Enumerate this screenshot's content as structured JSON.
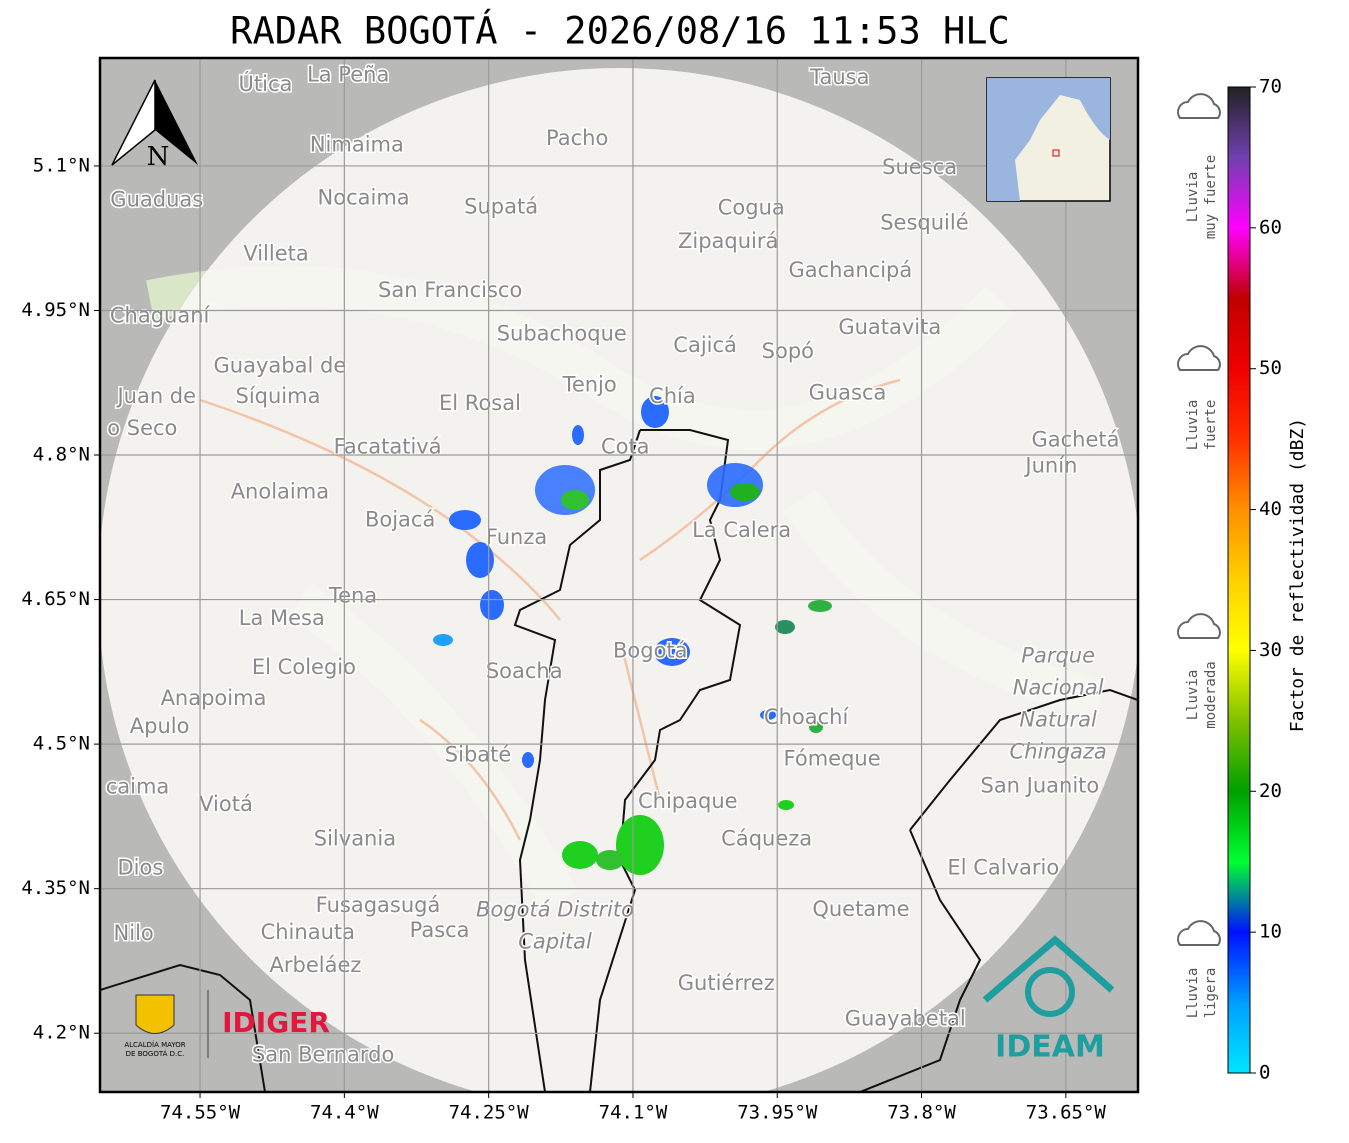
{
  "title": "RADAR BOGOTÁ - 2026/08/16 11:53 HLC",
  "map": {
    "xlim": [
      -74.654,
      -73.575
    ],
    "ylim": [
      4.139,
      5.212
    ],
    "xticks": [
      {
        "value": -74.55,
        "label": "74.55°W"
      },
      {
        "value": -74.4,
        "label": "74.4°W"
      },
      {
        "value": -74.25,
        "label": "74.25°W"
      },
      {
        "value": -74.1,
        "label": "74.1°W"
      },
      {
        "value": -73.95,
        "label": "73.95°W"
      },
      {
        "value": -73.8,
        "label": "73.8°W"
      },
      {
        "value": -73.65,
        "label": "73.65°W"
      }
    ],
    "yticks": [
      {
        "value": 5.1,
        "label": "5.1°N"
      },
      {
        "value": 4.95,
        "label": "4.95°N"
      },
      {
        "value": 4.8,
        "label": "4.8°N"
      },
      {
        "value": 4.65,
        "label": "4.65°N"
      },
      {
        "value": 4.5,
        "label": "4.5°N"
      },
      {
        "value": 4.35,
        "label": "4.35°N"
      },
      {
        "value": 4.2,
        "label": "4.2°N"
      }
    ],
    "grid": true,
    "north": "N",
    "places": [
      {
        "name": "Útica",
        "lon": -74.482,
        "lat": 5.184
      },
      {
        "name": "La Peña",
        "lon": -74.396,
        "lat": 5.194
      },
      {
        "name": "Tausa",
        "lon": -73.885,
        "lat": 5.191
      },
      {
        "name": "Pacho",
        "lon": -74.158,
        "lat": 5.128
      },
      {
        "name": "Nimaima",
        "lon": -74.387,
        "lat": 5.121
      },
      {
        "name": "Guaduas",
        "lon": -74.595,
        "lat": 5.064
      },
      {
        "name": "Nocaima",
        "lon": -74.38,
        "lat": 5.066
      },
      {
        "name": "Supatá",
        "lon": -74.237,
        "lat": 5.057
      },
      {
        "name": "Cogua",
        "lon": -73.977,
        "lat": 5.056
      },
      {
        "name": "Suesca",
        "lon": -73.802,
        "lat": 5.098
      },
      {
        "name": "Sesquilé",
        "lon": -73.797,
        "lat": 5.04
      },
      {
        "name": "Zipaquirá",
        "lon": -74.001,
        "lat": 5.021
      },
      {
        "name": "Villeta",
        "lon": -74.471,
        "lat": 5.008
      },
      {
        "name": "Gachancipá",
        "lon": -73.874,
        "lat": 4.991
      },
      {
        "name": "San Francisco",
        "lon": -74.29,
        "lat": 4.97
      },
      {
        "name": "Chaguaní",
        "lon": -74.592,
        "lat": 4.944
      },
      {
        "name": "Guatavita",
        "lon": -73.833,
        "lat": 4.932
      },
      {
        "name": "Subachoque",
        "lon": -74.174,
        "lat": 4.925
      },
      {
        "name": "Cajicá",
        "lon": -74.025,
        "lat": 4.913
      },
      {
        "name": "Sopó",
        "lon": -73.939,
        "lat": 4.907
      },
      {
        "name": "Guayabal de",
        "lon": -74.467,
        "lat": 4.892
      },
      {
        "name": "Síquima",
        "lon": -74.469,
        "lat": 4.86
      },
      {
        "name": "Tenjo",
        "lon": -74.145,
        "lat": 4.872
      },
      {
        "name": "Chía",
        "lon": -74.059,
        "lat": 4.86
      },
      {
        "name": "Guasca",
        "lon": -73.877,
        "lat": 4.864
      },
      {
        "name": "Juan de",
        "lon": -74.595,
        "lat": 4.86
      },
      {
        "name": "o Seco",
        "lon": -74.61,
        "lat": 4.827
      },
      {
        "name": "El Rosal",
        "lon": -74.259,
        "lat": 4.853
      },
      {
        "name": "Facatativá",
        "lon": -74.355,
        "lat": 4.808
      },
      {
        "name": "Cota",
        "lon": -74.108,
        "lat": 4.808
      },
      {
        "name": "Gachetá",
        "lon": -73.64,
        "lat": 4.815
      },
      {
        "name": "Junín",
        "lon": -73.665,
        "lat": 4.788
      },
      {
        "name": "Anolaima",
        "lon": -74.467,
        "lat": 4.761
      },
      {
        "name": "Bojacá",
        "lon": -74.342,
        "lat": 4.732
      },
      {
        "name": "Funza",
        "lon": -74.221,
        "lat": 4.714
      },
      {
        "name": "La Calera",
        "lon": -73.987,
        "lat": 4.721
      },
      {
        "name": "Tena",
        "lon": -74.391,
        "lat": 4.653
      },
      {
        "name": "La Mesa",
        "lon": -74.465,
        "lat": 4.63
      },
      {
        "name": "Soacha",
        "lon": -74.213,
        "lat": 4.575
      },
      {
        "name": "Bogotá",
        "lon": -74.082,
        "lat": 4.596
      },
      {
        "name": "El Colegio",
        "lon": -74.442,
        "lat": 4.579
      },
      {
        "name": "Anapoima",
        "lon": -74.536,
        "lat": 4.547
      },
      {
        "name": "Apulo",
        "lon": -74.592,
        "lat": 4.518
      },
      {
        "name": "Choachí",
        "lon": -73.92,
        "lat": 4.527
      },
      {
        "name": "Sibaté",
        "lon": -74.261,
        "lat": 4.488
      },
      {
        "name": "Fómeque",
        "lon": -73.893,
        "lat": 4.484
      },
      {
        "name": "San Juanito",
        "lon": -73.677,
        "lat": 4.456
      },
      {
        "name": "caima",
        "lon": -74.615,
        "lat": 4.455
      },
      {
        "name": "Viotá",
        "lon": -74.523,
        "lat": 4.437
      },
      {
        "name": "Chipaque",
        "lon": -74.043,
        "lat": 4.44
      },
      {
        "name": "Silvania",
        "lon": -74.389,
        "lat": 4.401
      },
      {
        "name": "Cáqueza",
        "lon": -73.961,
        "lat": 4.401
      },
      {
        "name": "Dios",
        "lon": -74.612,
        "lat": 4.371
      },
      {
        "name": "El Calvario",
        "lon": -73.715,
        "lat": 4.371
      },
      {
        "name": "Fusagasugá",
        "lon": -74.365,
        "lat": 4.332
      },
      {
        "name": "Quetame",
        "lon": -73.863,
        "lat": 4.328
      },
      {
        "name": "Nilo",
        "lon": -74.619,
        "lat": 4.303
      },
      {
        "name": "Chinauta",
        "lon": -74.438,
        "lat": 4.304
      },
      {
        "name": "Pasca",
        "lon": -74.301,
        "lat": 4.306
      },
      {
        "name": "Arbeláez",
        "lon": -74.43,
        "lat": 4.27
      },
      {
        "name": "Gutiérrez",
        "lon": -74.003,
        "lat": 4.251
      },
      {
        "name": "Guayabetal",
        "lon": -73.817,
        "lat": 4.214
      },
      {
        "name": "San Bernardo",
        "lon": -74.422,
        "lat": 4.177
      }
    ],
    "areas": [
      {
        "lines": [
          "Parque",
          "Nacional",
          "Natural",
          "Chingaza"
        ],
        "lon": -73.658,
        "lat": 4.541,
        "color": "#7fae8f"
      },
      {
        "lines": [
          "Bogotá Distrito",
          "Capital"
        ],
        "lon": -74.181,
        "lat": 4.311,
        "color": "#b58fc4"
      }
    ]
  },
  "colorbar": {
    "label": "Factor de reflectividad (dBZ)",
    "lim": [
      0,
      70
    ],
    "ticks": [
      0,
      10,
      20,
      30,
      40,
      50,
      60,
      70
    ],
    "categories": [
      {
        "lines": [
          "Lluvia",
          "muy fuerte"
        ]
      },
      {
        "lines": [
          "Lluvia",
          "fuerte"
        ]
      },
      {
        "lines": [
          "Lluvia",
          "moderada"
        ]
      },
      {
        "lines": [
          "Lluvia",
          "ligera"
        ]
      }
    ]
  },
  "logos": {
    "alcaldia": [
      "ALCALDÍA MAYOR",
      "DE BOGOTÁ D.C."
    ],
    "idiger": "IDIGER",
    "ideam": "IDEAM"
  }
}
